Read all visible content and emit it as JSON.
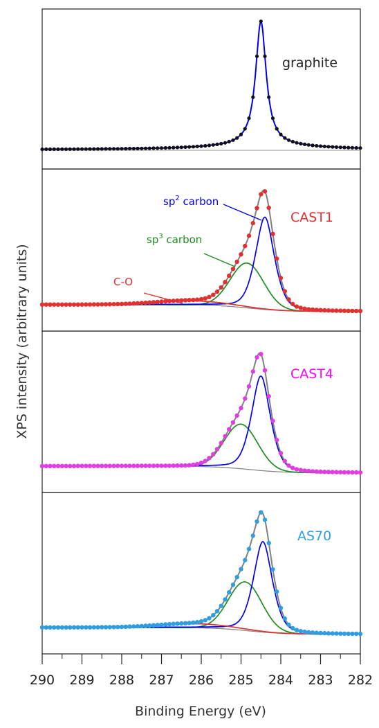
{
  "chart_data": {
    "type": "line",
    "xlabel": "Binding Energy (eV)",
    "ylabel": "XPS intensity (arbitrary units)",
    "xlim": [
      290,
      282
    ],
    "x_reversed": true,
    "x_ticks": [
      "290",
      "289",
      "288",
      "287",
      "286",
      "285",
      "284",
      "283",
      "282"
    ],
    "y_ticks_visible": false,
    "grid": false,
    "colors": {
      "envelope": "#808080",
      "sp2": "#0000ee",
      "sp3": "#1e8c1e",
      "co": "#e03030",
      "background": "#888888",
      "graphite": "#0000ee"
    },
    "panels": [
      {
        "name": "graphite",
        "label": "graphite",
        "label_color": "#222222",
        "marker_color": "#111111",
        "fit_color": "#0000ee",
        "peak": 284.5,
        "peak_height": 0.93,
        "tail_at_290": 0.0
      },
      {
        "name": "CAST1",
        "label": "CAST1",
        "label_color": "#e03030",
        "marker_color": "#e03030",
        "peak": 284.5,
        "peak_height": 0.92,
        "components": [
          {
            "name": "sp2 carbon",
            "center": 284.4,
            "height": 0.68
          },
          {
            "name": "sp3 carbon",
            "center": 284.85,
            "height": 0.33
          },
          {
            "name": "C-O",
            "center": 286.2,
            "height": 0.03
          }
        ]
      },
      {
        "name": "CAST4",
        "label": "CAST4",
        "label_color": "#ff00ff",
        "marker_color": "#e23de2",
        "peak": 284.6,
        "peak_height": 0.93,
        "components": [
          {
            "name": "sp2 carbon",
            "center": 284.5,
            "height": 0.7
          },
          {
            "name": "sp3 carbon",
            "center": 285.0,
            "height": 0.33
          }
        ]
      },
      {
        "name": "AS70",
        "label": "AS70",
        "label_color": "#2f9ee0",
        "marker_color": "#2f9ee0",
        "peak": 284.55,
        "peak_height": 0.93,
        "components": [
          {
            "name": "sp2 carbon",
            "center": 284.45,
            "height": 0.67
          },
          {
            "name": "sp3 carbon",
            "center": 284.9,
            "height": 0.36
          },
          {
            "name": "C-O",
            "center": 286.1,
            "height": 0.03
          }
        ]
      }
    ],
    "annotations": {
      "sp2": {
        "prefix": "sp",
        "sup": "2",
        "suffix": " carbon"
      },
      "sp3": {
        "prefix": "sp",
        "sup": "3",
        "suffix": " carbon"
      },
      "co": "C-O"
    }
  }
}
